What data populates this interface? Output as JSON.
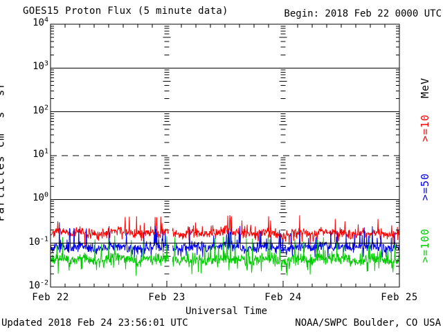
{
  "header": {
    "title": "GOES15 Proton Flux (5 minute data)",
    "begin": "Begin: 2018 Feb 22 0000 UTC"
  },
  "footer": {
    "updated": "Updated 2018 Feb 24 23:56:01 UTC",
    "credit": "NOAA/SWPC Boulder, CO USA"
  },
  "chart_data": {
    "type": "line",
    "title": "GOES15 Proton Flux (5 minute data)",
    "begin_label": "Begin: 2018 Feb 22 0000 UTC",
    "xlabel": "Universal Time",
    "ylabel": "Particles cm⁻²s⁻¹sr⁻¹",
    "y_scale": "log",
    "ylim": [
      0.01,
      10000
    ],
    "y_ticks": [
      {
        "exp": "4",
        "value": 10000
      },
      {
        "exp": "3",
        "value": 1000
      },
      {
        "exp": "2",
        "value": 100
      },
      {
        "exp": "1",
        "value": 10
      },
      {
        "exp": "0",
        "value": 1
      },
      {
        "exp": "-1",
        "value": 0.1
      },
      {
        "exp": "-2",
        "value": 0.01
      }
    ],
    "x_ticks": [
      {
        "label": "Feb 22",
        "day": 0
      },
      {
        "label": "Feb 23",
        "day": 1
      },
      {
        "label": "Feb 24",
        "day": 2
      },
      {
        "label": "Feb 25",
        "day": 3
      }
    ],
    "x_range_days": 3,
    "sample_minutes": 5,
    "grid": {
      "solid_values": [
        1000,
        100,
        1,
        0.1
      ],
      "dashed_values": [
        10
      ],
      "tick_column_days": [
        1,
        2
      ],
      "minor_tick_hours": 3
    },
    "data_gap_days": [
      1.016,
      1.048
    ],
    "legend": {
      "unit_label": "MeV",
      "unit_color": "#000000"
    },
    "series": [
      {
        "name": "Protons >=10 MeV",
        "legend_label": ">=10",
        "threshold_mev": 10,
        "color": "#ff0000",
        "mean_flux": 0.17,
        "flux_range": [
          0.09,
          0.45
        ],
        "samples_2h": [
          0.17,
          0.18,
          0.16,
          0.19,
          0.17,
          0.15,
          0.18,
          0.2,
          0.17,
          0.16,
          0.18,
          0.17,
          0.19,
          0.16,
          0.17,
          0.18,
          0.16,
          0.17,
          0.19,
          0.18,
          0.17,
          0.16,
          0.18,
          0.17,
          0.15,
          0.17,
          0.18,
          0.16,
          0.19,
          0.17,
          0.18,
          0.16,
          0.17,
          0.18,
          0.17,
          0.16,
          0.17
        ],
        "noise_sd_log": 0.11,
        "spike_prob": 0.05,
        "spike_extra": 0.25,
        "dip_prob": 0.04,
        "dip_extra": 0.12,
        "seed": 7
      },
      {
        "name": "Protons >=50 MeV",
        "legend_label": ">=50",
        "threshold_mev": 50,
        "color": "#0000ee",
        "mean_flux": 0.08,
        "flux_range": [
          0.048,
          0.3
        ],
        "samples_2h": [
          0.08,
          0.085,
          0.075,
          0.09,
          0.08,
          0.07,
          0.085,
          0.09,
          0.08,
          0.075,
          0.085,
          0.08,
          0.09,
          0.075,
          0.08,
          0.085,
          0.075,
          0.08,
          0.09,
          0.085,
          0.08,
          0.075,
          0.085,
          0.08,
          0.07,
          0.08,
          0.085,
          0.075,
          0.09,
          0.08,
          0.085,
          0.075,
          0.08,
          0.085,
          0.08,
          0.075,
          0.08
        ],
        "noise_sd_log": 0.11,
        "spike_prob": 0.06,
        "spike_extra": 0.38,
        "dip_prob": 0.04,
        "dip_extra": 0.12,
        "seed": 13
      },
      {
        "name": "Protons >=100 MeV",
        "legend_label": ">=100",
        "threshold_mev": 100,
        "color": "#00cc00",
        "mean_flux": 0.042,
        "flux_range": [
          0.018,
          0.16
        ],
        "samples_2h": [
          0.042,
          0.045,
          0.04,
          0.047,
          0.042,
          0.038,
          0.045,
          0.048,
          0.042,
          0.04,
          0.045,
          0.042,
          0.047,
          0.04,
          0.042,
          0.045,
          0.04,
          0.042,
          0.047,
          0.045,
          0.042,
          0.04,
          0.045,
          0.042,
          0.038,
          0.042,
          0.045,
          0.04,
          0.047,
          0.042,
          0.045,
          0.04,
          0.042,
          0.045,
          0.042,
          0.04,
          0.042
        ],
        "noise_sd_log": 0.13,
        "spike_prob": 0.06,
        "spike_extra": 0.42,
        "dip_prob": 0.05,
        "dip_extra": 0.2,
        "seed": 21
      }
    ]
  }
}
